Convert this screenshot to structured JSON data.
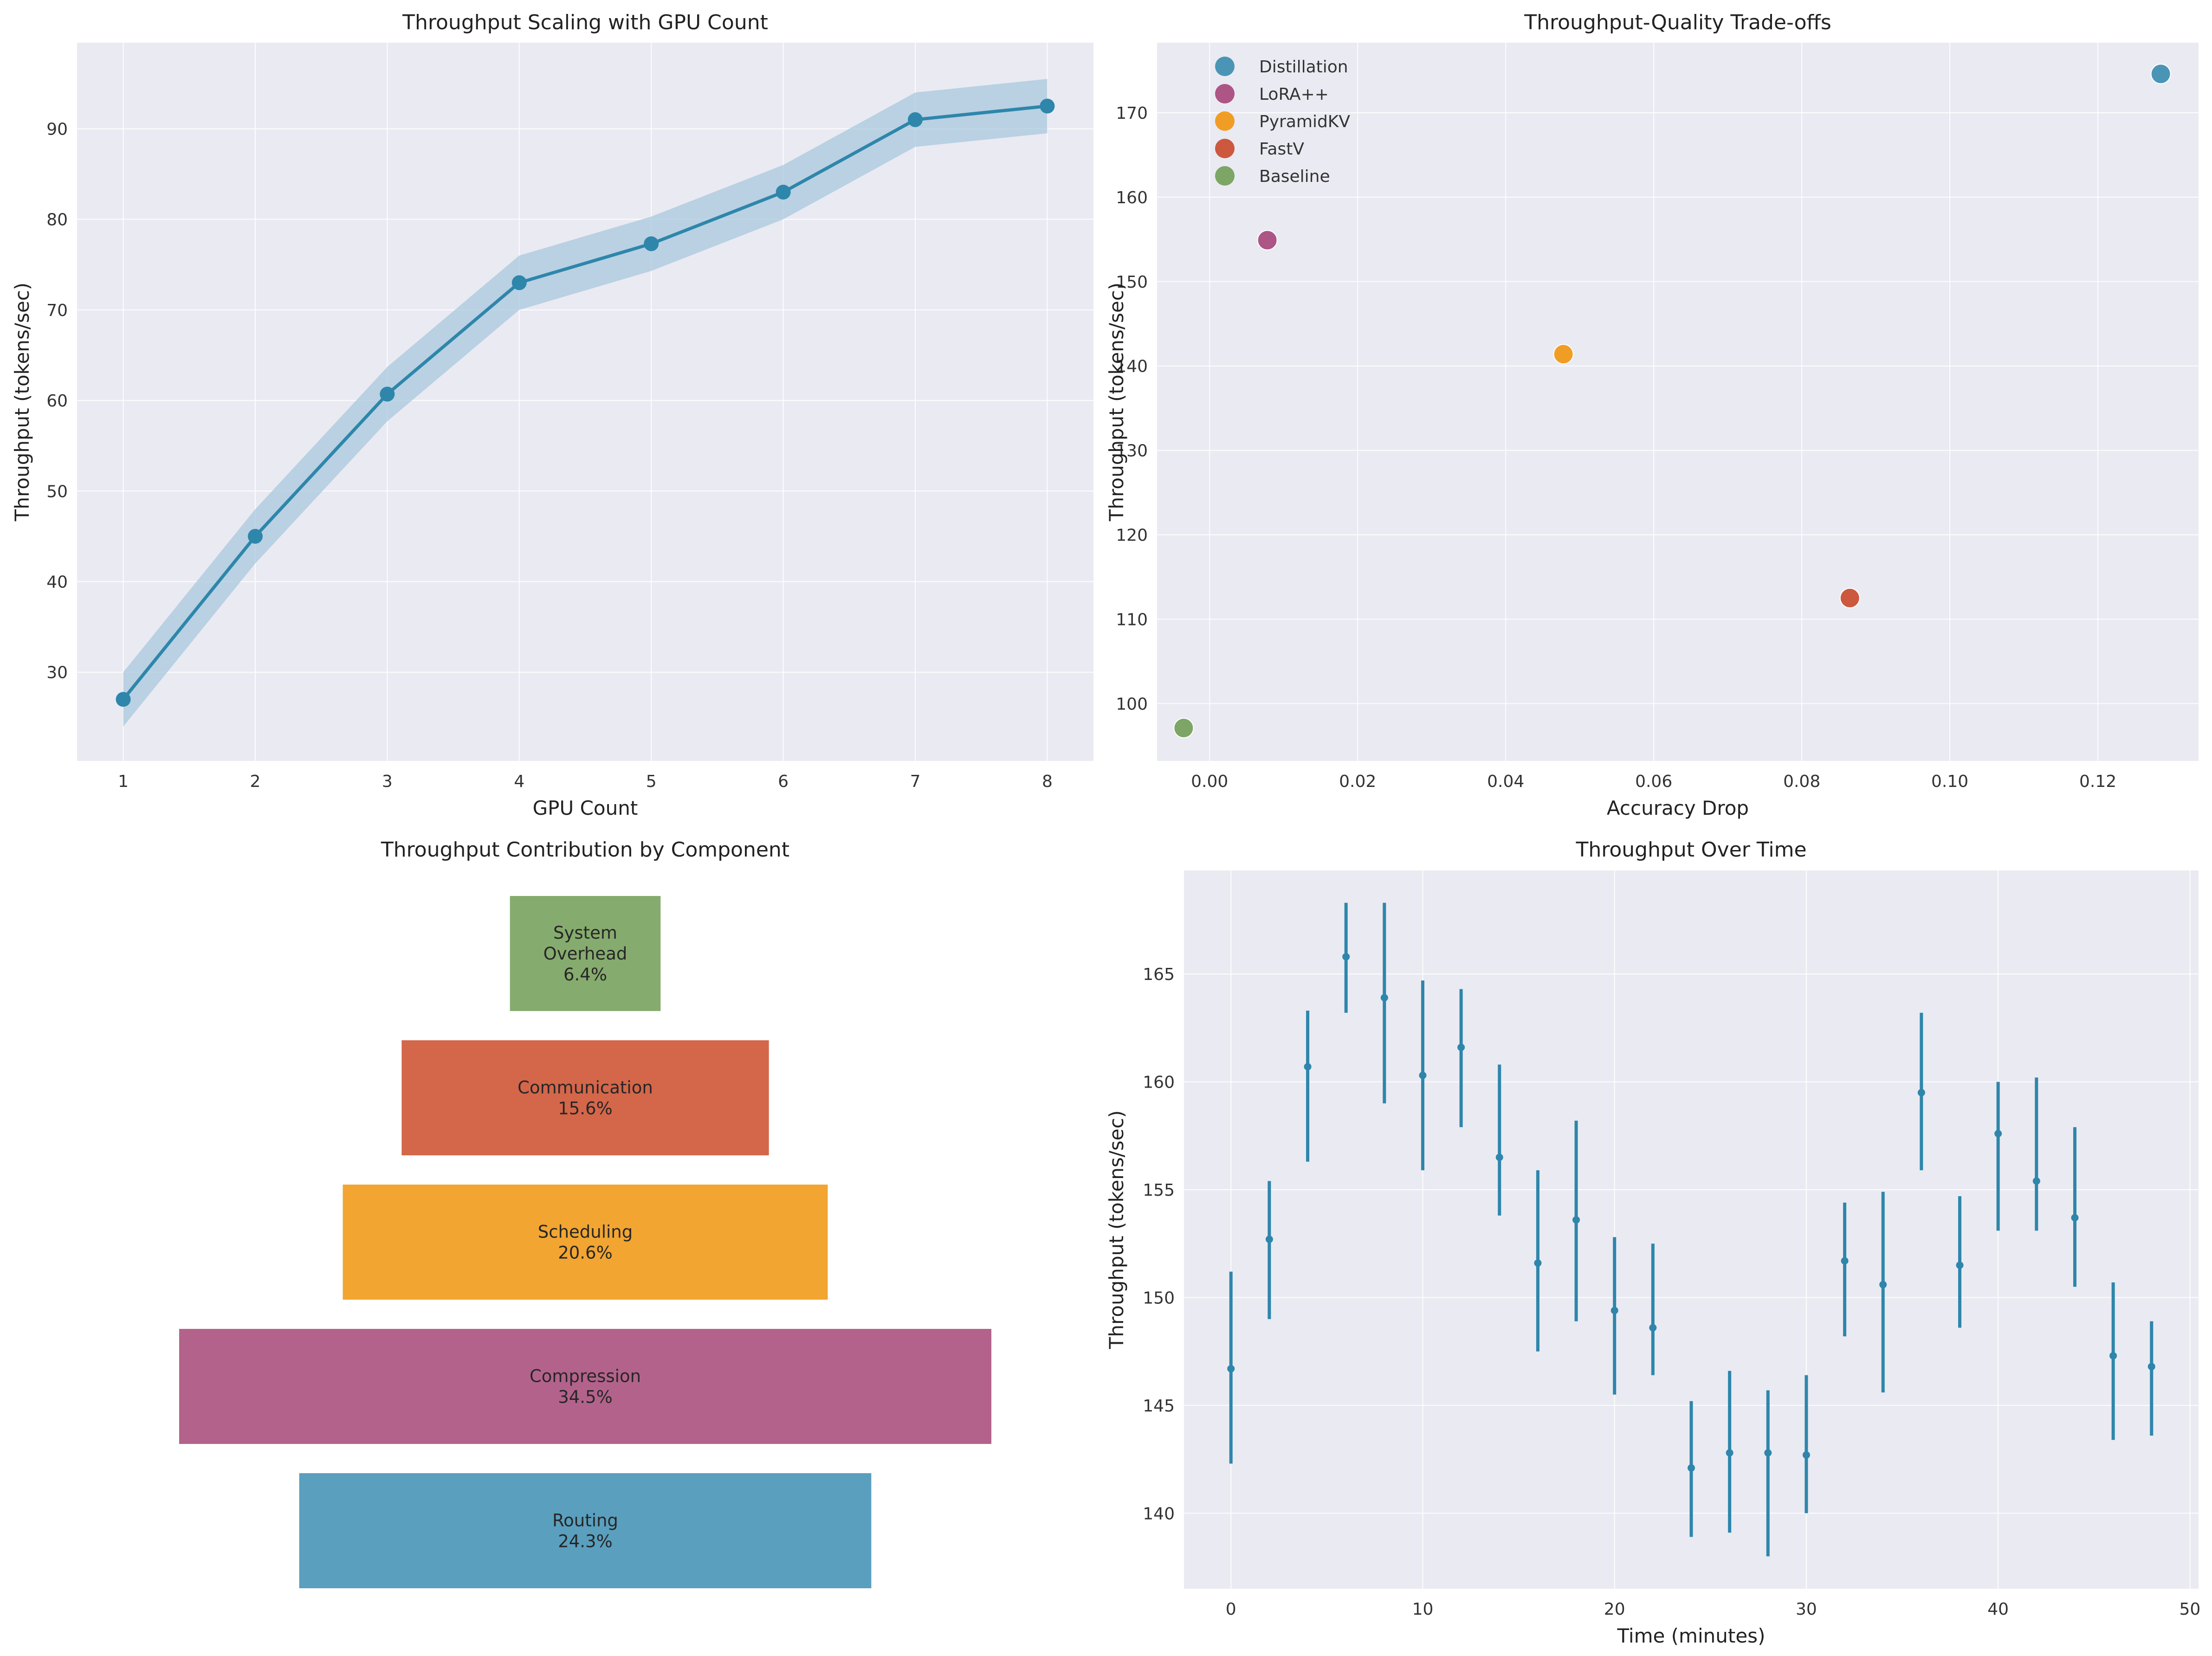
{
  "chart_data": [
    {
      "id": "scaling",
      "type": "line",
      "title": "Throughput Scaling with GPU Count",
      "xlabel": "GPU Count",
      "ylabel": "Throughput (tokens/sec)",
      "x": [
        1,
        2,
        3,
        4,
        5,
        6,
        7,
        8
      ],
      "y": [
        27.0,
        45.0,
        60.7,
        73.0,
        77.3,
        83.0,
        91.0,
        92.5
      ],
      "band_lower": [
        24.0,
        42.0,
        57.7,
        70.0,
        74.3,
        80.0,
        88.0,
        89.5
      ],
      "band_upper": [
        30.0,
        48.0,
        63.7,
        76.0,
        80.3,
        86.0,
        94.0,
        95.5
      ],
      "xlim": [
        0.65,
        8.35
      ],
      "ylim": [
        20.2,
        99.5
      ],
      "xticks": [
        1,
        2,
        3,
        4,
        5,
        6,
        7,
        8
      ],
      "yticks": [
        30,
        40,
        50,
        60,
        70,
        80,
        90
      ],
      "color": "#2e86ab",
      "band_color": "#a8c8dc",
      "grid": true
    },
    {
      "id": "tradeoff",
      "type": "scatter",
      "title": "Throughput-Quality Trade-offs",
      "xlabel": "Accuracy Drop",
      "ylabel": "Throughput (tokens/sec)",
      "xlim": [
        -0.0071,
        0.1336
      ],
      "ylim": [
        93.2,
        178.3
      ],
      "xticks": [
        0.0,
        0.02,
        0.04,
        0.06,
        0.08,
        0.1,
        0.12
      ],
      "xtick_labels": [
        "0.00",
        "0.02",
        "0.04",
        "0.06",
        "0.08",
        "0.10",
        "0.12"
      ],
      "yticks": [
        100,
        110,
        120,
        130,
        140,
        150,
        160,
        170
      ],
      "legend_position": "top-left",
      "grid": true,
      "series": [
        {
          "name": "Distillation",
          "x": 0.1285,
          "y": 174.6,
          "color": "#2e86ab"
        },
        {
          "name": "LoRA++",
          "x": 0.0078,
          "y": 154.9,
          "color": "#a23b72"
        },
        {
          "name": "PyramidKV",
          "x": 0.0478,
          "y": 141.4,
          "color": "#f18f01"
        },
        {
          "name": "FastV",
          "x": 0.0865,
          "y": 112.5,
          "color": "#c73e1d"
        },
        {
          "name": "Baseline",
          "x": -0.0035,
          "y": 97.1,
          "color": "#6a994e"
        }
      ]
    },
    {
      "id": "funnel",
      "type": "bar",
      "title": "Throughput Contribution by Component",
      "categories": [
        "System Overhead",
        "Communication",
        "Scheduling",
        "Compression",
        "Routing"
      ],
      "display_labels": [
        "System\nOverhead\n6.4%",
        "Communication\n15.6%",
        "Scheduling\n20.6%",
        "Compression\n34.5%",
        "Routing\n24.3%"
      ],
      "values": [
        6.4,
        15.6,
        20.6,
        34.5,
        24.3
      ],
      "colors": [
        "#86ab6e",
        "#d4664a",
        "#f2a531",
        "#b3638b",
        "#5a9fbe"
      ]
    },
    {
      "id": "overtime",
      "type": "scatter",
      "title": "Throughput Over Time",
      "xlabel": "Time (minutes)",
      "ylabel": "Throughput (tokens/sec)",
      "x": [
        0,
        2,
        4,
        6,
        8,
        10,
        12,
        14,
        16,
        18,
        20,
        22,
        24,
        26,
        28,
        30,
        32,
        34,
        36,
        38,
        40,
        42,
        44,
        46,
        48
      ],
      "y": [
        146.7,
        152.7,
        160.7,
        165.8,
        163.9,
        160.3,
        161.6,
        156.5,
        151.6,
        153.6,
        149.4,
        148.6,
        142.1,
        142.8,
        142.8,
        142.7,
        151.7,
        150.6,
        159.5,
        151.5,
        157.6,
        155.4,
        153.7,
        147.3,
        146.8
      ],
      "err_lower": [
        142.3,
        149.0,
        156.3,
        163.2,
        159.0,
        155.9,
        157.9,
        153.8,
        147.5,
        148.9,
        145.5,
        146.4,
        138.9,
        139.1,
        138.0,
        140.0,
        148.2,
        145.6,
        155.9,
        148.6,
        153.1,
        153.1,
        150.5,
        143.4,
        143.6
      ],
      "err_upper": [
        151.2,
        155.4,
        163.3,
        168.3,
        168.3,
        164.7,
        164.3,
        160.8,
        155.9,
        158.2,
        152.8,
        152.5,
        145.2,
        146.6,
        145.7,
        146.4,
        154.4,
        154.9,
        163.2,
        154.7,
        160.0,
        160.2,
        157.9,
        150.7,
        148.9
      ],
      "xlim": [
        -2.45,
        50.45
      ],
      "ylim": [
        136.5,
        169.8
      ],
      "xticks": [
        0,
        10,
        20,
        30,
        40,
        50
      ],
      "yticks": [
        140,
        145,
        150,
        155,
        160,
        165
      ],
      "color": "#2e86ab",
      "grid": true
    }
  ]
}
